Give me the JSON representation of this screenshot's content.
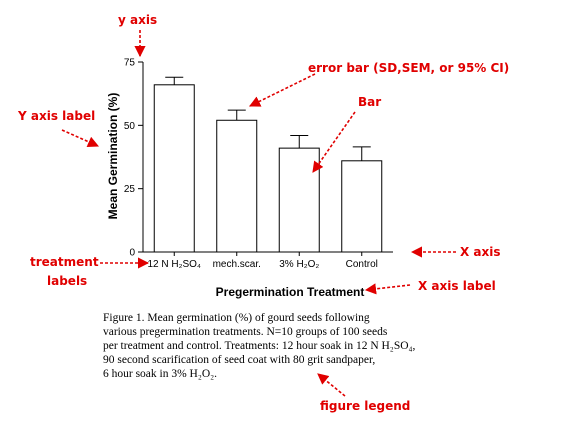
{
  "chart_data": {
    "type": "bar",
    "categories": [
      "12 N H₂SO₄",
      "mech.scar.",
      "3% H₂O₂",
      "Control"
    ],
    "values": [
      66,
      52,
      41,
      36
    ],
    "error": [
      3,
      4,
      5,
      5.5
    ],
    "xlabel": "Pregermination Treatment",
    "ylabel": "Mean Germination (%)",
    "ylim": [
      0,
      75
    ],
    "yticks": [
      "0",
      "25",
      "50",
      "75"
    ],
    "grid": false,
    "bar_fill": "#ffffff",
    "bar_stroke": "#000000"
  },
  "annotations": {
    "color": "#e00000",
    "y_axis": "y axis",
    "error_bar": "error bar (SD,SEM, or 95% CI)",
    "y_axis_label": "Y axis label",
    "bar": "Bar",
    "x_axis": "X axis",
    "treatment_labels_1": "treatment",
    "treatment_labels_2": "labels",
    "x_axis_label": "X axis label",
    "figure_legend": "figure legend"
  },
  "caption": {
    "lines": [
      "Figure 1. Mean germination (%) of gourd seeds following",
      "various pregermination treatments. N=10 groups of 100 seeds",
      "per treatment and control. Treatments: 12 hour soak in 12 N H₂SO₄,",
      "90 second scarification of seed coat with 80 grit sandpaper,",
      "6 hour soak in 3% H₂O₂."
    ]
  }
}
